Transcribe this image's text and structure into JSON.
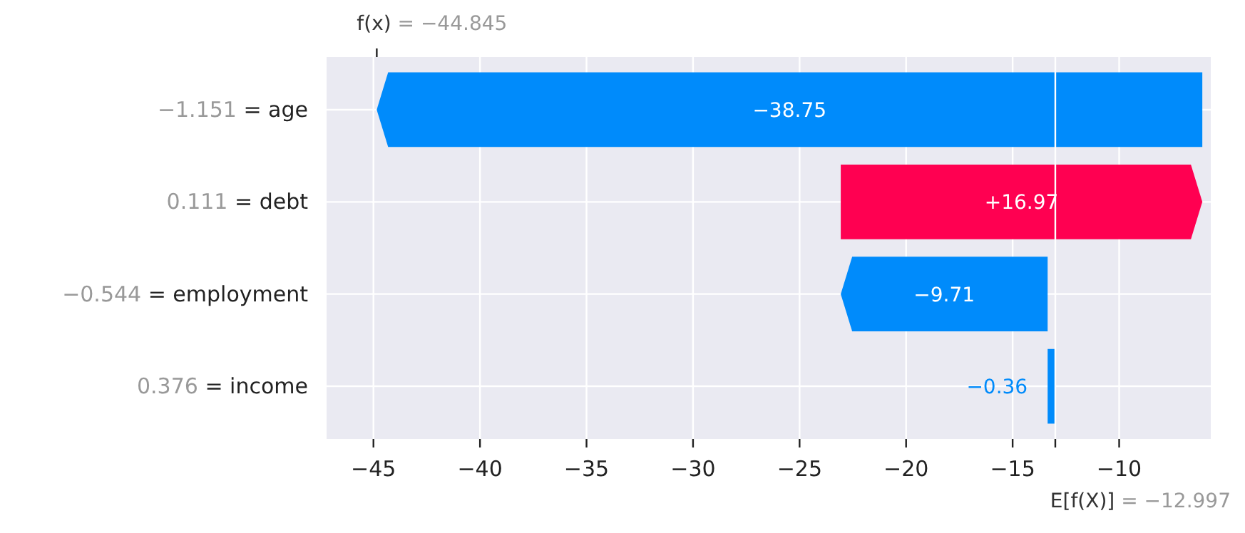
{
  "chart_data": {
    "type": "bar",
    "orientation": "horizontal",
    "categories": [
      "−1.151 = age",
      "0.111 = debt",
      "−0.544 = employment",
      "0.376 = income"
    ],
    "values": [
      -38.75,
      16.97,
      -9.71,
      -0.36
    ],
    "base": [
      -6.097,
      -23.067,
      -13.357,
      -12.997
    ],
    "colors": [
      "#008bfb",
      "#ff0051",
      "#008bfb",
      "#008bfb"
    ],
    "value_labels": [
      "−38.75",
      "+16.97",
      "−9.71",
      "−0.36"
    ],
    "xlim": [
      -47.2,
      -5.7
    ],
    "xticks": [
      {
        "value": -45,
        "label": "−45"
      },
      {
        "value": -40,
        "label": "−40"
      },
      {
        "value": -35,
        "label": "−35"
      },
      {
        "value": -30,
        "label": "−30"
      },
      {
        "value": -25,
        "label": "−25"
      },
      {
        "value": -20,
        "label": "−20"
      },
      {
        "value": -15,
        "label": "−15"
      },
      {
        "value": -10,
        "label": "−10"
      }
    ],
    "ref_lines": [
      {
        "axis": "x",
        "value": -44.845,
        "label": "f(x) = −44.845"
      },
      {
        "axis": "x",
        "value": -12.997,
        "label": "E[f(X)] = −12.997",
        "color": "#ffffff"
      }
    ],
    "grid": true
  }
}
